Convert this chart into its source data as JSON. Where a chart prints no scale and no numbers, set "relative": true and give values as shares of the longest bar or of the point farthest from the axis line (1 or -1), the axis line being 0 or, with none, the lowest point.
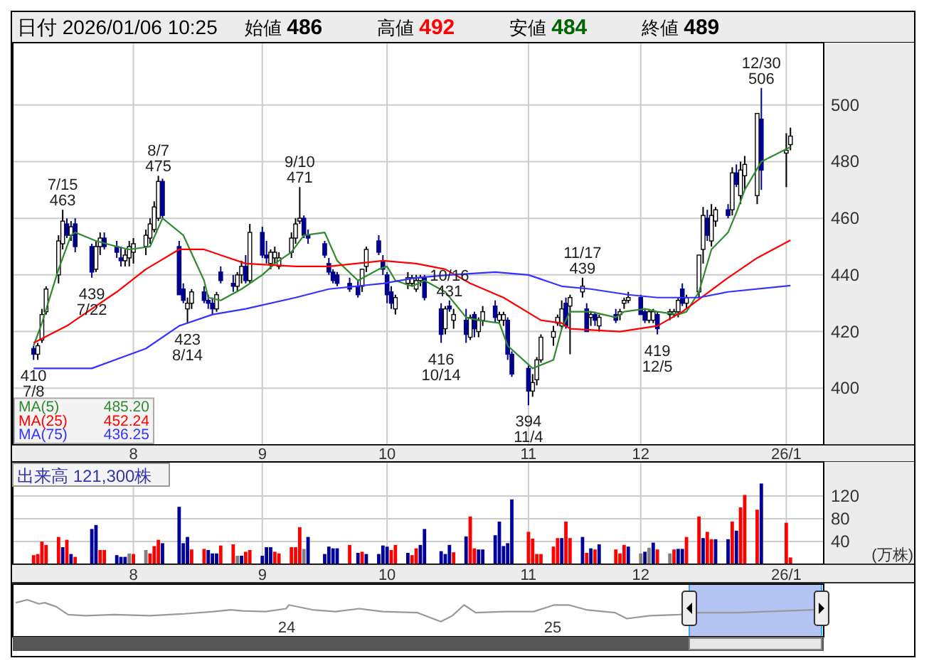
{
  "chart_data": [
    {
      "type": "candlestick",
      "title": "日付 2026/01/06 10:25",
      "grid": true,
      "colors": [
        "#00008b",
        "#ffffff",
        "#ffffff",
        "#ffffff",
        "#ffffff",
        "#ffffff",
        "#00008b",
        "#ffffff",
        "#00008b",
        "#00008b",
        "#ffffff",
        "#ffffff",
        "#00008b",
        "#00008b",
        "#00008b",
        "#ffffff",
        "#ffffff",
        "#ffffff",
        "#ffffff",
        "#ffffff",
        "#ffffff",
        "#ffffff",
        "#00008b",
        "#00008b",
        "#00008b",
        "#ffffff",
        "#ffffff",
        "#00008b",
        "#00008b",
        "#00008b",
        "#ffffff",
        "#00008b",
        "#00008b",
        "#ffffff",
        "#ffffff",
        "#00008b",
        "#ffffff",
        "#00008b",
        "#00008b",
        "#ffffff",
        "#ffffff",
        "#ffffff",
        "#ffffff",
        "#ffffff",
        "#ffffff",
        "#00008b",
        "#00008b",
        "#00008b",
        "#00008b",
        "#00008b",
        "#00008b",
        "#00008b",
        "#00008b",
        "#ffffff",
        "#ffffff",
        "#00008b",
        "#00008b",
        "#00008b",
        "#00008b",
        "#ffffff",
        "#ffffff",
        "#ffffff",
        "#ffffff",
        "#ffffff",
        "#00008b",
        "#00008b",
        "#ffffff",
        "#00008b",
        "#ffffff",
        "#00008b",
        "#ffffff",
        "#00008b",
        "#ffffff",
        "#ffffff",
        "#00008b",
        "#ffffff",
        "#ffffff",
        "#00008b",
        "#00008b",
        "#00008b",
        "#ffffff",
        "#ffffff",
        "#ffffff",
        "#ffffff",
        "#ffffff",
        "#ffffff",
        "#00008b",
        "#ffffff",
        "#ffffff",
        "#00008b",
        "#ffffff",
        "#00008b",
        "#ffffff",
        "#00008b",
        "#ffffff",
        "#ffffff",
        "#ffffff",
        "#00008b",
        "#00008b",
        "#ffffff",
        "#ffffff",
        "#00008b",
        "#ffffff",
        "#ffffff",
        "#ffffff",
        "#00008b",
        "#ffffff",
        "#ffffff",
        "#ffffff",
        "#00008b",
        "#ffffff",
        "#ffffff",
        "#00008b",
        "#ffffff",
        "#00008b",
        "#ffffff",
        "#ffffff",
        "#ffffff",
        "#00008b",
        "#ffffff",
        "#ffffff"
      ],
      "annotations": [
        "始値 486",
        "高値 492",
        "安値 484",
        "終値 489",
        {
          "text": "410 7/8",
          "x": "2025-07-08",
          "y": 410
        },
        {
          "text": "7/15 463",
          "x": "2025-07-15",
          "y": 463
        },
        {
          "text": "439 7/22",
          "x": "2025-07-22",
          "y": 439
        },
        {
          "text": "8/7 475",
          "x": "2025-08-07",
          "y": 475
        },
        {
          "text": "423 8/14",
          "x": "2025-08-14",
          "y": 423
        },
        {
          "text": "9/10 471",
          "x": "2025-09-10",
          "y": 471
        },
        {
          "text": "10/16 431",
          "x": "2025-10-16",
          "y": 431
        },
        {
          "text": "416 10/14",
          "x": "2025-10-14",
          "y": 416
        },
        {
          "text": "394 11/4",
          "x": "2025-11-04",
          "y": 394
        },
        {
          "text": "11/17 439",
          "x": "2025-11-17",
          "y": 439
        },
        {
          "text": "419 12/5",
          "x": "2025-12-05",
          "y": 419
        },
        {
          "text": "12/30 506",
          "x": "2025-12-30",
          "y": 506
        }
      ],
      "ylim": [
        380,
        522
      ],
      "yticks": [
        400,
        420,
        440,
        460,
        480,
        500
      ],
      "xlim": [
        "2025-07-03",
        "2026-01-14"
      ],
      "xticks": [
        {
          "value": "2025-08-01",
          "label": "8"
        },
        {
          "value": "2025-09-01",
          "label": "9"
        },
        {
          "value": "2025-10-01",
          "label": "10"
        },
        {
          "value": "2025-11-04",
          "label": "11"
        },
        {
          "value": "2025-12-01",
          "label": "12"
        },
        {
          "value": "2026-01-05",
          "label": "26/1"
        }
      ],
      "x": [
        "2025-07-08",
        "2025-07-09",
        "2025-07-10",
        "2025-07-11",
        "2025-07-14",
        "2025-07-15",
        "2025-07-16",
        "2025-07-17",
        "2025-07-18",
        "2025-07-22",
        "2025-07-23",
        "2025-07-24",
        "2025-07-25",
        "2025-07-28",
        "2025-07-29",
        "2025-07-30",
        "2025-07-31",
        "2025-08-01",
        "2025-08-04",
        "2025-08-05",
        "2025-08-06",
        "2025-08-07",
        "2025-08-08",
        "2025-08-12",
        "2025-08-13",
        "2025-08-14",
        "2025-08-15",
        "2025-08-18",
        "2025-08-19",
        "2025-08-20",
        "2025-08-21",
        "2025-08-22",
        "2025-08-25",
        "2025-08-26",
        "2025-08-27",
        "2025-08-28",
        "2025-08-29",
        "2025-09-01",
        "2025-09-02",
        "2025-09-03",
        "2025-09-04",
        "2025-09-05",
        "2025-09-08",
        "2025-09-09",
        "2025-09-10",
        "2025-09-11",
        "2025-09-12",
        "2025-09-16",
        "2025-09-17",
        "2025-09-18",
        "2025-09-19",
        "2025-09-22",
        "2025-09-24",
        "2025-09-25",
        "2025-09-26",
        "2025-09-29",
        "2025-09-30",
        "2025-10-01",
        "2025-10-02",
        "2025-10-03",
        "2025-10-06",
        "2025-10-07",
        "2025-10-08",
        "2025-10-09",
        "2025-10-10",
        "2025-10-14",
        "2025-10-15",
        "2025-10-16",
        "2025-10-17",
        "2025-10-20",
        "2025-10-21",
        "2025-10-22",
        "2025-10-23",
        "2025-10-24",
        "2025-10-27",
        "2025-10-28",
        "2025-10-29",
        "2025-10-30",
        "2025-10-31",
        "2025-11-04",
        "2025-11-05",
        "2025-11-06",
        "2025-11-07",
        "2025-11-10",
        "2025-11-11",
        "2025-11-12",
        "2025-11-13",
        "2025-11-14",
        "2025-11-17",
        "2025-11-18",
        "2025-11-19",
        "2025-11-20",
        "2025-11-21",
        "2025-11-25",
        "2025-11-26",
        "2025-11-27",
        "2025-11-28",
        "2025-12-01",
        "2025-12-02",
        "2025-12-03",
        "2025-12-04",
        "2025-12-05",
        "2025-12-08",
        "2025-12-09",
        "2025-12-10",
        "2025-12-11",
        "2025-12-12",
        "2025-12-15",
        "2025-12-16",
        "2025-12-17",
        "2025-12-18",
        "2025-12-19",
        "2025-12-22",
        "2025-12-23",
        "2025-12-24",
        "2025-12-25",
        "2025-12-26",
        "2025-12-29",
        "2025-12-30",
        "2026-01-05",
        "2026-01-06"
      ],
      "ohlc": [
        [
          414,
          415,
          410,
          412
        ],
        [
          412,
          416,
          410,
          415
        ],
        [
          417,
          428,
          416,
          426
        ],
        [
          427,
          436,
          426,
          435
        ],
        [
          440,
          454,
          437,
          452
        ],
        [
          451,
          463,
          449,
          459
        ],
        [
          458,
          460,
          453,
          454
        ],
        [
          454,
          459,
          452,
          457
        ],
        [
          458,
          460,
          448,
          450
        ],
        [
          450,
          451,
          439,
          441
        ],
        [
          442,
          452,
          441,
          450
        ],
        [
          450,
          455,
          447,
          453
        ],
        [
          453,
          455,
          449,
          450
        ],
        [
          450,
          452,
          446,
          448
        ],
        [
          446,
          450,
          443,
          445
        ],
        [
          445,
          449,
          443,
          447
        ],
        [
          446,
          452,
          443,
          450
        ],
        [
          448,
          453,
          444,
          451
        ],
        [
          450,
          456,
          447,
          454
        ],
        [
          453,
          460,
          451,
          458
        ],
        [
          456,
          466,
          455,
          464
        ],
        [
          460,
          475,
          459,
          473
        ],
        [
          473,
          474,
          460,
          461
        ],
        [
          450,
          452,
          433,
          433
        ],
        [
          435,
          437,
          430,
          431
        ],
        [
          428,
          432,
          423,
          430
        ],
        [
          430,
          435,
          428,
          434
        ],
        [
          434,
          436,
          430,
          431
        ],
        [
          431,
          433,
          428,
          430
        ],
        [
          430,
          432,
          426,
          428
        ],
        [
          428,
          434,
          427,
          433
        ],
        [
          441,
          443,
          437,
          438
        ],
        [
          437,
          440,
          434,
          436
        ],
        [
          436,
          441,
          434,
          440
        ],
        [
          440,
          445,
          437,
          443
        ],
        [
          443,
          447,
          437,
          438
        ],
        [
          438,
          458,
          437,
          455
        ],
        [
          455,
          457,
          446,
          447
        ],
        [
          447,
          452,
          444,
          446
        ],
        [
          444,
          449,
          442,
          448
        ],
        [
          446,
          450,
          444,
          448
        ],
        [
          443,
          448,
          442,
          446
        ],
        [
          448,
          455,
          446,
          453
        ],
        [
          453,
          460,
          451,
          458
        ],
        [
          459,
          471,
          458,
          460
        ],
        [
          460,
          461,
          453,
          454
        ],
        [
          454,
          456,
          451,
          453
        ],
        [
          451,
          452,
          446,
          447
        ],
        [
          444,
          446,
          440,
          441
        ],
        [
          441,
          442,
          437,
          438
        ],
        [
          440,
          441,
          436,
          437
        ],
        [
          437,
          439,
          434,
          435
        ],
        [
          436,
          438,
          432,
          433
        ],
        [
          436,
          442,
          434,
          442
        ],
        [
          443,
          450,
          441,
          449
        ],
        [
          452,
          454,
          447,
          448
        ],
        [
          445,
          447,
          440,
          442
        ],
        [
          440,
          441,
          430,
          433
        ],
        [
          434,
          436,
          428,
          430
        ],
        [
          428,
          433,
          426,
          432
        ],
        [
          437,
          441,
          435,
          439
        ],
        [
          437,
          440,
          436,
          439
        ],
        [
          435,
          440,
          434,
          438
        ],
        [
          438,
          440,
          436,
          439
        ],
        [
          439,
          440,
          431,
          432
        ],
        [
          428,
          430,
          416,
          419
        ],
        [
          421,
          429,
          419,
          428
        ],
        [
          429,
          431,
          427,
          428
        ],
        [
          424,
          428,
          421,
          426
        ],
        [
          424,
          428,
          416,
          419
        ],
        [
          418,
          426,
          417,
          425
        ],
        [
          426,
          427,
          418,
          421
        ],
        [
          420,
          425,
          418,
          424
        ],
        [
          424,
          429,
          422,
          427
        ],
        [
          429,
          431,
          423,
          425
        ],
        [
          424,
          427,
          423,
          426
        ],
        [
          424,
          427,
          422,
          426
        ],
        [
          424,
          425,
          410,
          412
        ],
        [
          412,
          413,
          404,
          405
        ],
        [
          407,
          408,
          394,
          399
        ],
        [
          399,
          405,
          397,
          402
        ],
        [
          403,
          411,
          401,
          410
        ],
        [
          410,
          419,
          409,
          418
        ],
        [
          418,
          422,
          415,
          420
        ],
        [
          423,
          426,
          422,
          425
        ],
        [
          422,
          431,
          421,
          428
        ],
        [
          430,
          432,
          421,
          422
        ],
        [
          429,
          433,
          412,
          432
        ],
        [
          434,
          439,
          432,
          436
        ],
        [
          428,
          430,
          420,
          420
        ],
        [
          425,
          427,
          422,
          426
        ],
        [
          426,
          427,
          422,
          424
        ],
        [
          422,
          426,
          420,
          425
        ],
        [
          426,
          428,
          423,
          424
        ],
        [
          426,
          428,
          424,
          427
        ],
        [
          430,
          432,
          428,
          431
        ],
        [
          431,
          434,
          430,
          432
        ],
        [
          432,
          433,
          426,
          426
        ],
        [
          427,
          428,
          423,
          424
        ],
        [
          424,
          428,
          423,
          427
        ],
        [
          424,
          428,
          423,
          427
        ],
        [
          426,
          427,
          419,
          421
        ],
        [
          426,
          428,
          424,
          427
        ],
        [
          426,
          428,
          425,
          427
        ],
        [
          427,
          432,
          425,
          431
        ],
        [
          435,
          437,
          429,
          430
        ],
        [
          430,
          433,
          428,
          432
        ],
        [
          434,
          447,
          432,
          447
        ],
        [
          449,
          464,
          444,
          461
        ],
        [
          460,
          463,
          452,
          454
        ],
        [
          452,
          465,
          450,
          461
        ],
        [
          459,
          464,
          457,
          463
        ],
        [
          463,
          465,
          460,
          461
        ],
        [
          463,
          478,
          461,
          476
        ],
        [
          476,
          479,
          471,
          472
        ],
        [
          468,
          480,
          465,
          477
        ],
        [
          475,
          482,
          470,
          479
        ],
        [
          468,
          497,
          465,
          497
        ],
        [
          495,
          506,
          470,
          477
        ],
        [
          483,
          490,
          471,
          484
        ],
        [
          486,
          492,
          484,
          489
        ]
      ],
      "series": [
        {
          "name": "MA(5) 485.20",
          "type": "line",
          "color": "#2e8b2e",
          "x": [
            "2025-07-08",
            "2025-07-10",
            "2025-07-14",
            "2025-07-17",
            "2025-07-18",
            "2025-07-23",
            "2025-07-28",
            "2025-07-31",
            "2025-08-05",
            "2025-08-08",
            "2025-08-13",
            "2025-08-18",
            "2025-08-19",
            "2025-08-22",
            "2025-08-27",
            "2025-09-01",
            "2025-09-04",
            "2025-09-08",
            "2025-09-11",
            "2025-09-16",
            "2025-09-19",
            "2025-09-24",
            "2025-09-29",
            "2025-10-01",
            "2025-10-03",
            "2025-10-07",
            "2025-10-10",
            "2025-10-15",
            "2025-10-20",
            "2025-10-23",
            "2025-10-28",
            "2025-10-30",
            "2025-11-05",
            "2025-11-10",
            "2025-11-12",
            "2025-11-14",
            "2025-11-19",
            "2025-11-25",
            "2025-11-27",
            "2025-12-02",
            "2025-12-05",
            "2025-12-10",
            "2025-12-12",
            "2025-12-15",
            "2025-12-18",
            "2025-12-22",
            "2025-12-24",
            "2025-12-26",
            "2025-12-30",
            "2026-01-06"
          ],
          "values": [
            415,
            423,
            442,
            454,
            455,
            452,
            450,
            449,
            450,
            460,
            454,
            438,
            432,
            431,
            435,
            440,
            444,
            448,
            454,
            455,
            445,
            438,
            442,
            443,
            438,
            436,
            438,
            434,
            425,
            424,
            423,
            415,
            407,
            410,
            421,
            427,
            427,
            425,
            427,
            428,
            427,
            426,
            427,
            434,
            449,
            455,
            462,
            470,
            480,
            485.2
          ]
        },
        {
          "name": "MA(25) 452.24",
          "type": "line",
          "color": "#ff0000",
          "x": [
            "2025-07-08",
            "2025-07-16",
            "2025-07-28",
            "2025-08-04",
            "2025-08-12",
            "2025-08-18",
            "2025-08-22",
            "2025-08-28",
            "2025-09-09",
            "2025-09-17",
            "2025-09-30",
            "2025-10-08",
            "2025-10-15",
            "2025-10-21",
            "2025-10-29",
            "2025-11-07",
            "2025-11-12",
            "2025-11-14",
            "2025-11-26",
            "2025-12-05",
            "2025-12-11",
            "2025-12-22",
            "2025-12-29",
            "2026-01-06"
          ],
          "values": [
            416,
            422,
            434,
            442,
            449,
            449,
            447,
            444,
            443,
            443,
            445,
            444,
            442,
            437,
            432,
            424,
            423,
            421,
            420,
            422,
            427,
            439,
            446,
            452.24
          ]
        },
        {
          "name": "MA(75) 436.25",
          "type": "line",
          "color": "#3333ff",
          "x": [
            "2025-07-08",
            "2025-07-22",
            "2025-08-04",
            "2025-08-12",
            "2025-08-20",
            "2025-08-28",
            "2025-09-09",
            "2025-09-17",
            "2025-09-30",
            "2025-10-08",
            "2025-10-16",
            "2025-10-27",
            "2025-11-04",
            "2025-11-12",
            "2025-11-19",
            "2025-11-28",
            "2025-12-05",
            "2025-12-15",
            "2025-12-22",
            "2026-01-06"
          ],
          "values": [
            407,
            407,
            414,
            422,
            426,
            428,
            432,
            435,
            437,
            439,
            440,
            441,
            440,
            436,
            435,
            433,
            432,
            432,
            434,
            436.25
          ]
        }
      ]
    },
    {
      "type": "bar",
      "grid": true,
      "ylabel": "(万株)",
      "annotations": [
        "出来高 121,300株"
      ],
      "ylim": [
        0,
        180
      ],
      "yticks": [
        40,
        80,
        120
      ],
      "xlim": [
        "2025-07-03",
        "2026-01-14"
      ],
      "xticks": [
        {
          "value": "2025-08-01",
          "label": "8"
        },
        {
          "value": "2025-09-01",
          "label": "9"
        },
        {
          "value": "2025-10-01",
          "label": "10"
        },
        {
          "value": "2025-11-04",
          "label": "11"
        },
        {
          "value": "2025-12-01",
          "label": "12"
        },
        {
          "value": "2026-01-05",
          "label": "26/1"
        }
      ],
      "x": [
        "2025-07-08",
        "2025-07-09",
        "2025-07-10",
        "2025-07-11",
        "2025-07-14",
        "2025-07-15",
        "2025-07-16",
        "2025-07-17",
        "2025-07-18",
        "2025-07-22",
        "2025-07-23",
        "2025-07-24",
        "2025-07-25",
        "2025-07-28",
        "2025-07-29",
        "2025-07-30",
        "2025-07-31",
        "2025-08-01",
        "2025-08-04",
        "2025-08-05",
        "2025-08-06",
        "2025-08-07",
        "2025-08-08",
        "2025-08-12",
        "2025-08-13",
        "2025-08-14",
        "2025-08-15",
        "2025-08-18",
        "2025-08-19",
        "2025-08-20",
        "2025-08-21",
        "2025-08-22",
        "2025-08-25",
        "2025-08-26",
        "2025-08-27",
        "2025-08-28",
        "2025-08-29",
        "2025-09-01",
        "2025-09-02",
        "2025-09-03",
        "2025-09-04",
        "2025-09-05",
        "2025-09-08",
        "2025-09-09",
        "2025-09-10",
        "2025-09-11",
        "2025-09-12",
        "2025-09-16",
        "2025-09-17",
        "2025-09-18",
        "2025-09-19",
        "2025-09-22",
        "2025-09-24",
        "2025-09-25",
        "2025-09-26",
        "2025-09-29",
        "2025-09-30",
        "2025-10-01",
        "2025-10-02",
        "2025-10-03",
        "2025-10-06",
        "2025-10-07",
        "2025-10-08",
        "2025-10-09",
        "2025-10-10",
        "2025-10-14",
        "2025-10-15",
        "2025-10-16",
        "2025-10-17",
        "2025-10-20",
        "2025-10-21",
        "2025-10-22",
        "2025-10-23",
        "2025-10-24",
        "2025-10-27",
        "2025-10-28",
        "2025-10-29",
        "2025-10-30",
        "2025-10-31",
        "2025-11-04",
        "2025-11-05",
        "2025-11-06",
        "2025-11-07",
        "2025-11-10",
        "2025-11-11",
        "2025-11-12",
        "2025-11-13",
        "2025-11-14",
        "2025-11-17",
        "2025-11-18",
        "2025-11-19",
        "2025-11-20",
        "2025-11-21",
        "2025-11-25",
        "2025-11-26",
        "2025-11-27",
        "2025-11-28",
        "2025-12-01",
        "2025-12-02",
        "2025-12-03",
        "2025-12-04",
        "2025-12-05",
        "2025-12-08",
        "2025-12-09",
        "2025-12-10",
        "2025-12-11",
        "2025-12-12",
        "2025-12-15",
        "2025-12-16",
        "2025-12-17",
        "2025-12-18",
        "2025-12-19",
        "2025-12-22",
        "2025-12-23",
        "2025-12-24",
        "2025-12-25",
        "2025-12-26",
        "2025-12-29",
        "2025-12-30",
        "2026-01-05",
        "2026-01-06"
      ],
      "values": [
        16,
        18,
        40,
        34,
        48,
        30,
        43,
        18,
        13,
        62,
        69,
        25,
        25,
        16,
        13,
        13,
        19,
        18,
        25,
        19,
        32,
        43,
        37,
        101,
        37,
        48,
        26,
        27,
        25,
        19,
        19,
        33,
        35,
        15,
        15,
        22,
        25,
        15,
        30,
        30,
        22,
        19,
        30,
        30,
        65,
        27,
        48,
        18,
        31,
        28,
        28,
        34,
        20,
        22,
        18,
        18,
        33,
        31,
        25,
        34,
        20,
        16,
        28,
        34,
        62,
        23,
        18,
        34,
        21,
        49,
        84,
        28,
        26,
        26,
        51,
        75,
        32,
        37,
        114,
        57,
        45,
        18,
        18,
        31,
        46,
        46,
        75,
        46,
        48,
        20,
        28,
        26,
        35,
        26,
        19,
        34,
        31,
        19,
        22,
        29,
        38,
        26,
        19,
        26,
        27,
        27,
        48,
        84,
        46,
        57,
        44,
        44,
        44,
        75,
        59,
        100,
        122,
        96,
        142,
        73,
        12
      ],
      "colors": [
        "#ff0000",
        "#ff0000",
        "#ff0000",
        "#ff0000",
        "#ff0000",
        "#000099",
        "#ff0000",
        "#000099",
        "#ff0000",
        "#000099",
        "#000099",
        "#ff0000",
        "#ff0000",
        "#000099",
        "#000099",
        "#000099",
        "#808080",
        "#ff0000",
        "#808080",
        "#ff0000",
        "#ff0000",
        "#ff0000",
        "#000099",
        "#000099",
        "#000099",
        "#000099",
        "#ff0000",
        "#ff0000",
        "#000099",
        "#000099",
        "#000099",
        "#ff0000",
        "#ff0000",
        "#808080",
        "#000099",
        "#ff0000",
        "#ff0000",
        "#000099",
        "#000099",
        "#000099",
        "#ff0000",
        "#ff0000",
        "#ff0000",
        "#ff0000",
        "#ff0000",
        "#808080",
        "#000099",
        "#000099",
        "#000099",
        "#000099",
        "#000099",
        "#ff0000",
        "#000099",
        "#ff0000",
        "#000099",
        "#000099",
        "#000099",
        "#000099",
        "#ff0000",
        "#ff0000",
        "#000099",
        "#ff0000",
        "#ff0000",
        "#000099",
        "#000099",
        "#000099",
        "#000099",
        "#000099",
        "#ff0000",
        "#000099",
        "#ff0000",
        "#ff0000",
        "#000099",
        "#000099",
        "#000099",
        "#000099",
        "#000099",
        "#000099",
        "#000099",
        "#ff0000",
        "#ff0000",
        "#ff0000",
        "#ff0000",
        "#ff0000",
        "#ff0000",
        "#000099",
        "#ff0000",
        "#ff0000",
        "#000099",
        "#ff0000",
        "#000099",
        "#ff0000",
        "#000099",
        "#ff0000",
        "#ff0000",
        "#ff0000",
        "#000099",
        "#808080",
        "#000099",
        "#808080",
        "#000099",
        "#ff0000",
        "#808080",
        "#ff0000",
        "#000099",
        "#000099",
        "#ff0000",
        "#ff0000",
        "#000099",
        "#ff0000",
        "#ff0000",
        "#000099",
        "#000099",
        "#ff0000",
        "#000099",
        "#ff0000",
        "#ff0000",
        "#ff0000",
        "#000099",
        "#ff0000",
        "#ff0000"
      ]
    },
    {
      "type": "line",
      "relative": true,
      "color": "#999999",
      "xlim": [
        "2022-12-20",
        "2026-01-09"
      ],
      "xticks": [
        {
          "value": "2024-01-01",
          "label": "24"
        },
        {
          "value": "2025-01-01",
          "label": "25"
        }
      ],
      "bands": [
        {
          "axis": "x",
          "from": "2025-07-08",
          "to": "2026-01-06",
          "color": "#b4c4f4"
        }
      ],
      "x": [
        "2022-12-24",
        "2023-01-09",
        "2023-01-25",
        "2023-02-02",
        "2023-02-18",
        "2023-03-06",
        "2023-03-30",
        "2023-05-09",
        "2023-06-27",
        "2023-08-13",
        "2023-09-22",
        "2023-10-16",
        "2023-11-01",
        "2023-12-03",
        "2023-12-31",
        "2024-01-04",
        "2024-02-05",
        "2024-03-08",
        "2024-04-10",
        "2024-05-12",
        "2024-06-29",
        "2024-07-31",
        "2024-08-16",
        "2024-09-01",
        "2024-09-17",
        "2024-10-27",
        "2024-12-06",
        "2025-01-03",
        "2025-01-23",
        "2025-02-16",
        "2025-03-28",
        "2025-04-13",
        "2025-05-15",
        "2025-06-24",
        "2025-07-22",
        "2025-09-12",
        "2025-10-22",
        "2025-12-26"
      ],
      "values": [
        0.92,
        1.0,
        0.89,
        0.92,
        0.81,
        0.6,
        0.57,
        0.6,
        0.57,
        0.62,
        0.68,
        0.73,
        0.7,
        0.68,
        0.76,
        0.86,
        0.73,
        0.68,
        0.76,
        0.68,
        0.65,
        0.41,
        0.57,
        0.86,
        0.65,
        0.68,
        0.68,
        0.86,
        0.86,
        0.73,
        0.65,
        0.49,
        0.57,
        0.6,
        0.65,
        0.65,
        0.68,
        0.73
      ]
    }
  ]
}
